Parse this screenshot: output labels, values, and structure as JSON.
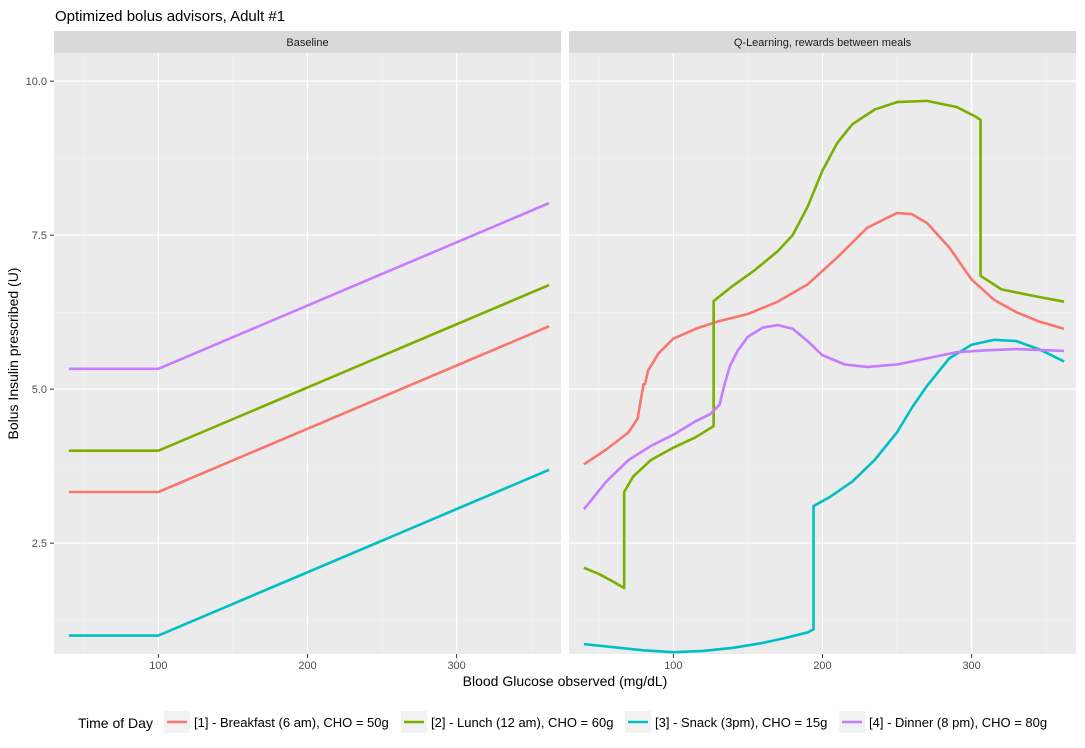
{
  "chart_data": {
    "type": "line",
    "title": "Optimized bolus advisors, Adult #1",
    "xlabel": "Blood Glucose observed (mg/dL)",
    "ylabel": "Bolus Insulin prescribed (U)",
    "xlim": [
      30,
      370
    ],
    "ylim": [
      0.7,
      10.1
    ],
    "x_ticks": [
      100,
      200,
      300
    ],
    "y_ticks": [
      2.5,
      5.0,
      7.5,
      10.0
    ],
    "y_tick_labels": [
      "2.5",
      "5.0",
      "7.5",
      "10.0"
    ],
    "grid": true,
    "legend_position": "bottom",
    "legend_title": "Time of Day",
    "series_names": [
      "[1] - Breakfast (6 am), CHO = 50g",
      "[2] - Lunch (12 am), CHO = 60g",
      "[3] - Snack (3pm), CHO = 15g",
      "[4] - Dinner (8 pm), CHO = 80g"
    ],
    "series_colors": [
      "#F8766D",
      "#7CAE00",
      "#00BFC4",
      "#C77CFF"
    ],
    "panels": [
      {
        "label": "Baseline",
        "series": [
          {
            "name": "[1] - Breakfast (6 am), CHO = 50g",
            "x": [
              40,
              100,
              362
            ],
            "y": [
              3.33,
              3.33,
              6.02
            ]
          },
          {
            "name": "[2] - Lunch (12 am), CHO = 60g",
            "x": [
              40,
              100,
              362
            ],
            "y": [
              4.0,
              4.0,
              6.69
            ]
          },
          {
            "name": "[3] - Snack (3pm), CHO = 15g",
            "x": [
              40,
              100,
              362
            ],
            "y": [
              1.0,
              1.0,
              3.69
            ]
          },
          {
            "name": "[4] - Dinner (8 pm), CHO = 80g",
            "x": [
              40,
              100,
              362
            ],
            "y": [
              5.33,
              5.33,
              8.02
            ]
          }
        ]
      },
      {
        "label": "Q-Learning, rewards between meals",
        "series": [
          {
            "name": "[1] - Breakfast (6 am), CHO = 50g",
            "x": [
              40,
              55,
              70,
              76,
              80,
              81,
              83,
              90,
              100,
              115,
              130,
              150,
              170,
              190,
              210,
              230,
              250,
              260,
              270,
              285,
              300,
              315,
              330,
              345,
              362
            ],
            "y": [
              3.78,
              4.02,
              4.3,
              4.52,
              5.08,
              5.08,
              5.3,
              5.58,
              5.82,
              5.98,
              6.1,
              6.22,
              6.42,
              6.7,
              7.14,
              7.62,
              7.86,
              7.84,
              7.7,
              7.3,
              6.78,
              6.45,
              6.25,
              6.1,
              5.98
            ]
          },
          {
            "name": "[2] - Lunch (12 am), CHO = 60g",
            "x": [
              40,
              50,
              60,
              67,
              67,
              73,
              85,
              100,
              115,
              127,
              127,
              140,
              155,
              170,
              180,
              190,
              200,
              210,
              220,
              235,
              250,
              270,
              290,
              303,
              306,
              306,
              320,
              340,
              362
            ],
            "y": [
              2.1,
              2.0,
              1.87,
              1.77,
              3.33,
              3.58,
              3.85,
              4.05,
              4.22,
              4.4,
              6.43,
              6.68,
              6.94,
              7.24,
              7.5,
              7.96,
              8.55,
              9.0,
              9.3,
              9.54,
              9.66,
              9.68,
              9.58,
              9.42,
              9.37,
              6.84,
              6.62,
              6.52,
              6.42
            ]
          },
          {
            "name": "[3] - Snack (3pm), CHO = 15g",
            "x": [
              40,
              60,
              80,
              100,
              120,
              140,
              160,
              175,
              190,
              194,
              194,
              205,
              220,
              235,
              250,
              260,
              270,
              285,
              300,
              315,
              330,
              345,
              362
            ],
            "y": [
              0.86,
              0.81,
              0.76,
              0.73,
              0.75,
              0.8,
              0.88,
              0.96,
              1.05,
              1.1,
              3.1,
              3.25,
              3.5,
              3.85,
              4.3,
              4.7,
              5.05,
              5.5,
              5.72,
              5.8,
              5.78,
              5.65,
              5.45
            ]
          },
          {
            "name": "[4] - Dinner (8 pm), CHO = 80g",
            "x": [
              40,
              55,
              70,
              85,
              100,
              115,
              125,
              131,
              134,
              138,
              143,
              150,
              160,
              170,
              180,
              190,
              200,
              215,
              230,
              250,
              270,
              290,
              310,
              330,
              362
            ],
            "y": [
              3.05,
              3.5,
              3.85,
              4.08,
              4.26,
              4.48,
              4.6,
              4.75,
              5.05,
              5.38,
              5.62,
              5.85,
              6.0,
              6.04,
              5.98,
              5.78,
              5.55,
              5.4,
              5.36,
              5.4,
              5.5,
              5.6,
              5.63,
              5.65,
              5.62
            ]
          }
        ]
      }
    ]
  }
}
